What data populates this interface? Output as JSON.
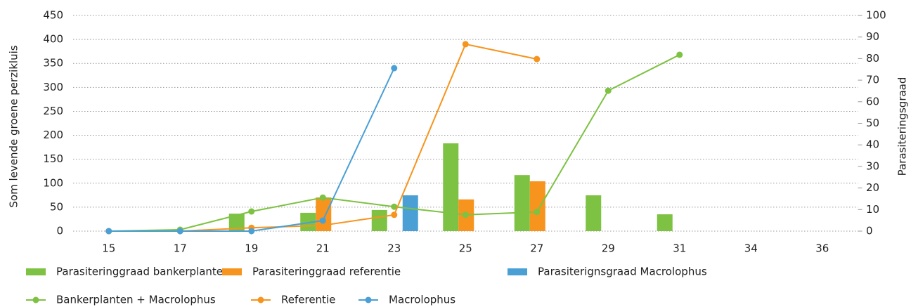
{
  "chart_data": {
    "type": "combo",
    "y_label": "Som levende groene perzikluis",
    "y2_label": "Parasiteringsgraad",
    "categories": [
      "15",
      "17",
      "19",
      "21",
      "23",
      "25",
      "27",
      "29",
      "31",
      "34",
      "36"
    ],
    "ylim": [
      0,
      450
    ],
    "yticks": [
      0,
      50,
      100,
      150,
      200,
      250,
      300,
      350,
      400,
      450
    ],
    "y2lim": [
      0,
      100
    ],
    "y2ticks": [
      0,
      10,
      20,
      30,
      40,
      50,
      60,
      70,
      80,
      90,
      100
    ],
    "grid": true,
    "series": [
      {
        "name": "Parasiteringgraad bankerplanten",
        "type": "bar",
        "axis": "y2",
        "color": "#7dc242",
        "values": [
          null,
          null,
          8.1,
          8.5,
          9.8,
          40.7,
          26,
          16.6,
          7.8,
          null,
          null
        ]
      },
      {
        "name": "Parasiteringgraad referentie",
        "type": "bar",
        "axis": "y2",
        "color": "#f7941d",
        "values": [
          null,
          null,
          null,
          15.6,
          null,
          14.7,
          23.1,
          null,
          null,
          null,
          null
        ]
      },
      {
        "name": "Parasiterignsgraad Macrolophus",
        "type": "bar",
        "axis": "y2",
        "color": "#4a9fd5",
        "values": [
          null,
          null,
          null,
          null,
          16.6,
          null,
          null,
          null,
          null,
          null,
          null
        ]
      },
      {
        "name": "Bankerplanten + Macrolophus",
        "type": "line",
        "color": "#7dc242",
        "values": [
          0,
          3,
          41,
          70,
          51,
          34,
          40,
          293,
          368,
          null,
          null
        ]
      },
      {
        "name": "Referentie",
        "type": "line",
        "color": "#f7941d",
        "values": [
          0,
          0,
          7,
          12,
          34,
          390,
          359,
          null,
          null,
          null,
          null
        ]
      },
      {
        "name": "Macrolophus",
        "type": "line",
        "color": "#4a9fd5",
        "values": [
          0,
          0,
          0,
          22,
          340,
          null,
          null,
          null,
          null,
          null,
          null
        ]
      }
    ]
  }
}
